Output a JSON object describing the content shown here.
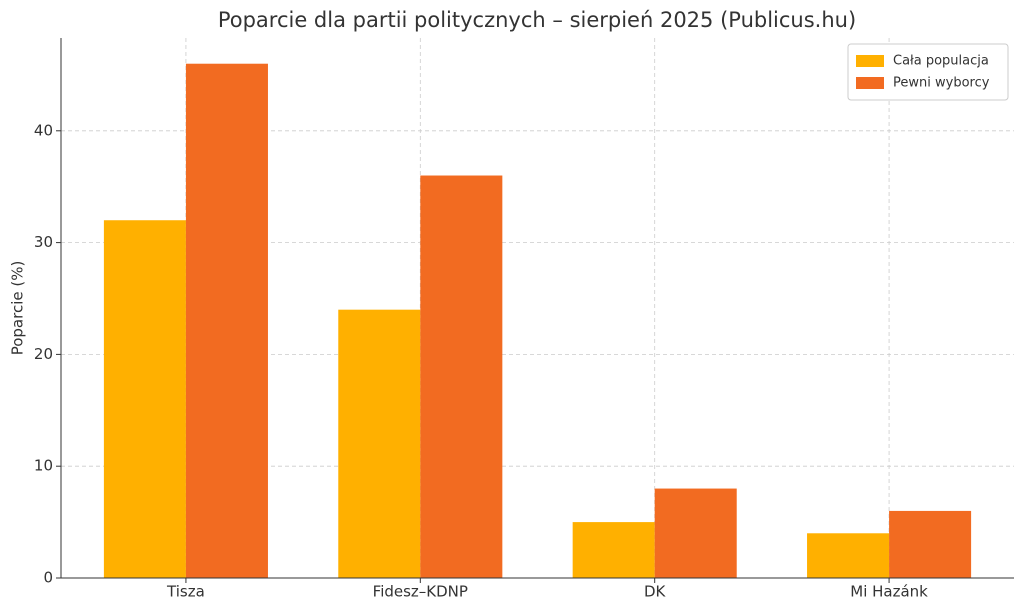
{
  "chart_data": {
    "type": "bar",
    "title": "Poparcie dla partii politycznych – sierpień 2025 (Publicus.hu)",
    "y_label": "Poparcie (%)",
    "categories": [
      "Tisza",
      "Fidesz–KDNP",
      "DK",
      "Mi Hazánk"
    ],
    "series": [
      {
        "name": "Cała populacja",
        "color": "#ffb000",
        "values": [
          32,
          24,
          5,
          4
        ]
      },
      {
        "name": "Pewni wyborcy",
        "color": "#f26b21",
        "values": [
          46,
          36,
          8,
          6
        ]
      }
    ],
    "ylim": [
      0,
      48.3
    ],
    "yticks": [
      0,
      10,
      20,
      30,
      40
    ],
    "grid": true,
    "legend": "upper right"
  }
}
